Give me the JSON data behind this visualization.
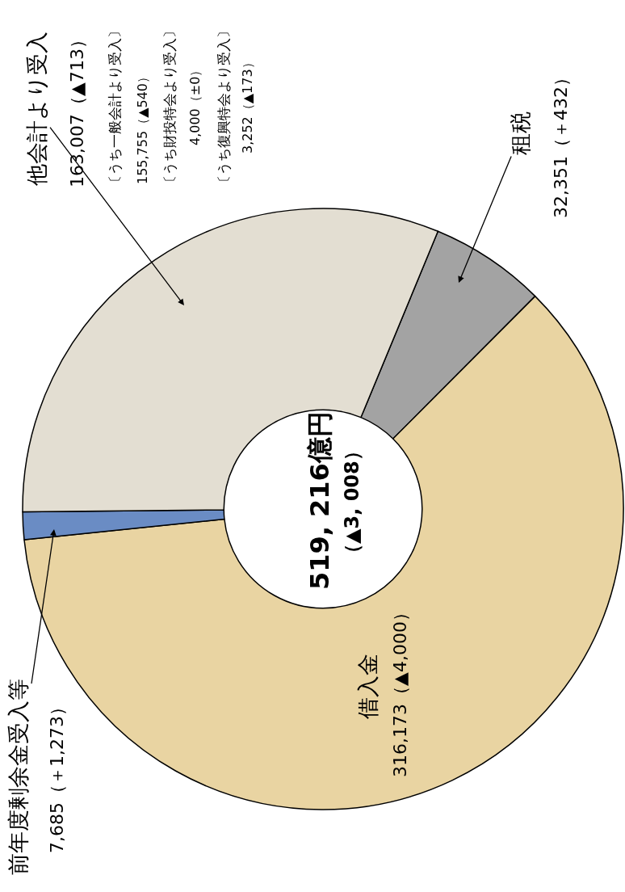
{
  "chart_data": {
    "type": "donut",
    "categories": [
      "租税",
      "借入金",
      "前年度剰余金受入等",
      "他会計より受入"
    ],
    "values": [
      32351,
      316173,
      7685,
      163007
    ],
    "colors": [
      "#a3a3a3",
      "#e9d4a2",
      "#6a8cc4",
      "#e3ded2"
    ],
    "value_labels": [
      "32,351（＋432）",
      "316,173（▲4,000）",
      "7,685（＋1,273）",
      "163,007（▲713）"
    ],
    "annotations": [
      "〔うち一般会計より受入〕",
      "155,755（▲540）",
      "〔うち財投特会より受入〕",
      "4,000（±0）",
      "〔うち復興特会より受入〕",
      "3,252（▲173）",
      "519, 216億円",
      "（▲3, 008）"
    ],
    "legend": false
  }
}
